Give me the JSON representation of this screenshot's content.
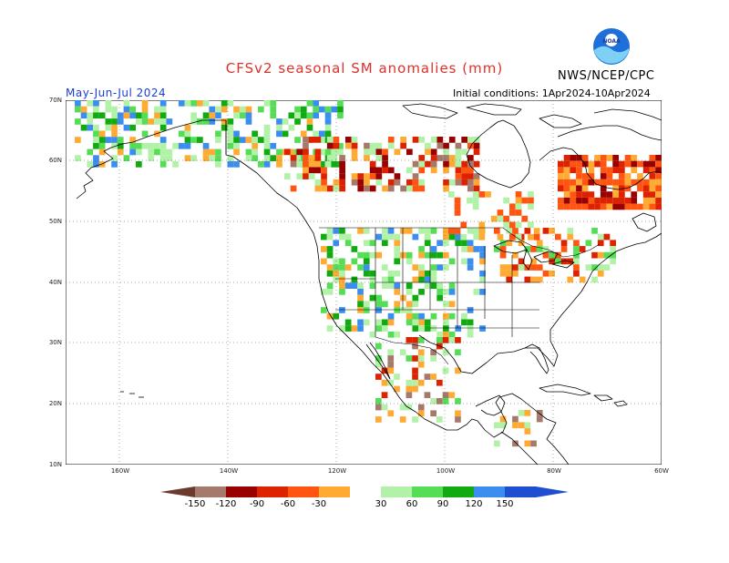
{
  "header": {
    "title": "CFSv2 seasonal SM anomalies (mm)",
    "agency": "NWS/NCEP/CPC",
    "logo_text": "NOAA",
    "season": "May-Jun-Jul 2024",
    "initial_conditions": "Initial conditions: 1Apr2024-10Apr2024"
  },
  "axes": {
    "lat_labels": [
      "70N",
      "60N",
      "50N",
      "40N",
      "30N",
      "20N",
      "10N"
    ],
    "lon_labels": [
      "160W",
      "140W",
      "120W",
      "100W",
      "80W",
      "60W"
    ]
  },
  "legend": {
    "ticks": [
      "-150",
      "-120",
      "-90",
      "-60",
      "-30",
      "30",
      "60",
      "90",
      "120",
      "150"
    ],
    "colors": {
      "lt_neg150": "#6b3a2c",
      "neg150_120": "#a57a6c",
      "neg120_90": "#990000",
      "neg90_60": "#dd2200",
      "neg60_30": "#ff5511",
      "neg30_0": "#ffaa33",
      "pos30_60": "#b2f2a8",
      "pos60_90": "#55dd55",
      "pos90_120": "#11aa11",
      "pos120_150": "#3b8ef0",
      "gt150": "#1f4fd0"
    }
  },
  "map": {
    "projection": "lat-lon",
    "lat_range": [
      10,
      70
    ],
    "lon_range": [
      -170,
      -60
    ],
    "grid": "dotted every 20 deg lon / 10 deg lat"
  }
}
